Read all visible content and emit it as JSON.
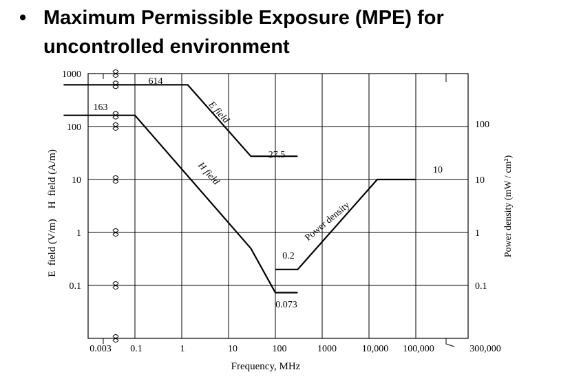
{
  "slide": {
    "bullet": "•",
    "title_line1": "Maximum Permissible Exposure (MPE) for",
    "title_line2": "uncontrolled environment"
  },
  "chart_data": {
    "type": "line",
    "x_scale": "log",
    "y_scale": "log",
    "xlabel": "Frequency, MHz",
    "ylabel_left": "E  field (V/m)    H  field (A/m)",
    "ylabel_right": "Power density (mW / cm²)",
    "xlim": [
      0.003,
      300000
    ],
    "ylim": [
      0.01,
      1000
    ],
    "grid": true,
    "x_ticks": [
      {
        "value": 0.003,
        "label": "0.003"
      },
      {
        "value": 0.1,
        "label": "0.1"
      },
      {
        "value": 1,
        "label": "1"
      },
      {
        "value": 10,
        "label": "10"
      },
      {
        "value": 100,
        "label": "100"
      },
      {
        "value": 1000,
        "label": "1000"
      },
      {
        "value": 10000,
        "label": "10,000"
      },
      {
        "value": 100000,
        "label": "100,000"
      },
      {
        "value": 300000,
        "label": "300,000"
      }
    ],
    "y_ticks_left": [
      {
        "value": 1000,
        "label": "1000"
      },
      {
        "value": 100,
        "label": "100"
      },
      {
        "value": 10,
        "label": "10"
      },
      {
        "value": 1,
        "label": "1"
      },
      {
        "value": 0.1,
        "label": "0.1"
      }
    ],
    "y_ticks_right": [
      {
        "value": 100,
        "label": "100"
      },
      {
        "value": 10,
        "label": "10"
      },
      {
        "value": 1,
        "label": "1"
      },
      {
        "value": 0.1,
        "label": "0.1"
      }
    ],
    "series": [
      {
        "name": "E field",
        "x": [
          0.003,
          1.34,
          30,
          300
        ],
        "y": [
          614,
          614,
          27.5,
          27.5
        ]
      },
      {
        "name": "H field",
        "x": [
          0.003,
          0.1,
          30,
          100,
          300
        ],
        "y": [
          163,
          163,
          0.5,
          0.073,
          0.073
        ]
      },
      {
        "name": "Power density",
        "x": [
          100,
          300,
          15000,
          100000
        ],
        "y": [
          0.2,
          0.2,
          10,
          10
        ]
      }
    ],
    "annotations": [
      {
        "text": "614",
        "x": 0.5,
        "y": 614
      },
      {
        "text": "163",
        "x": 0.003,
        "y": 163
      },
      {
        "text": "27.5",
        "x": 100,
        "y": 27.5
      },
      {
        "text": "10",
        "x": 40000,
        "y": 10
      },
      {
        "text": "0.2",
        "x": 100,
        "y": 0.2
      },
      {
        "text": "0.073",
        "x": 100,
        "y": 0.073
      }
    ]
  }
}
